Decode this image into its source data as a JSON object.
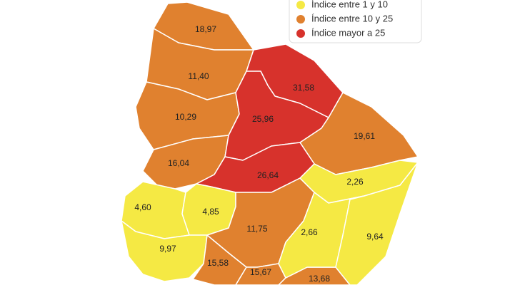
{
  "legend": [
    {
      "label": "Índice entre 1 y 10",
      "color": "#f5e944"
    },
    {
      "label": "Índice entre 10 y 25",
      "color": "#e0812f"
    },
    {
      "label": "Índice mayor a 25",
      "color": "#d7322c"
    }
  ],
  "regions": [
    {
      "label": "18,97",
      "color": "#e0812f"
    },
    {
      "label": "11,40",
      "color": "#e0812f"
    },
    {
      "label": "10,29",
      "color": "#e0812f"
    },
    {
      "label": "16,04",
      "color": "#e0812f"
    },
    {
      "label": "31,58",
      "color": "#d7322c"
    },
    {
      "label": "25,96",
      "color": "#d7322c"
    },
    {
      "label": "19,61",
      "color": "#e0812f"
    },
    {
      "label": "26,64",
      "color": "#d7322c"
    },
    {
      "label": "4,60",
      "color": "#f5e944"
    },
    {
      "label": "4,85",
      "color": "#f5e944"
    },
    {
      "label": "9,97",
      "color": "#f5e944"
    },
    {
      "label": "11,75",
      "color": "#e0812f"
    },
    {
      "label": "15,58",
      "color": "#e0812f"
    },
    {
      "label": "15,67",
      "color": "#e0812f"
    },
    {
      "label": "13,68",
      "color": "#e0812f"
    },
    {
      "label": "2,26",
      "color": "#f5e944"
    },
    {
      "label": "2,66",
      "color": "#f5e944"
    },
    {
      "label": "9,64",
      "color": "#f5e944"
    }
  ]
}
